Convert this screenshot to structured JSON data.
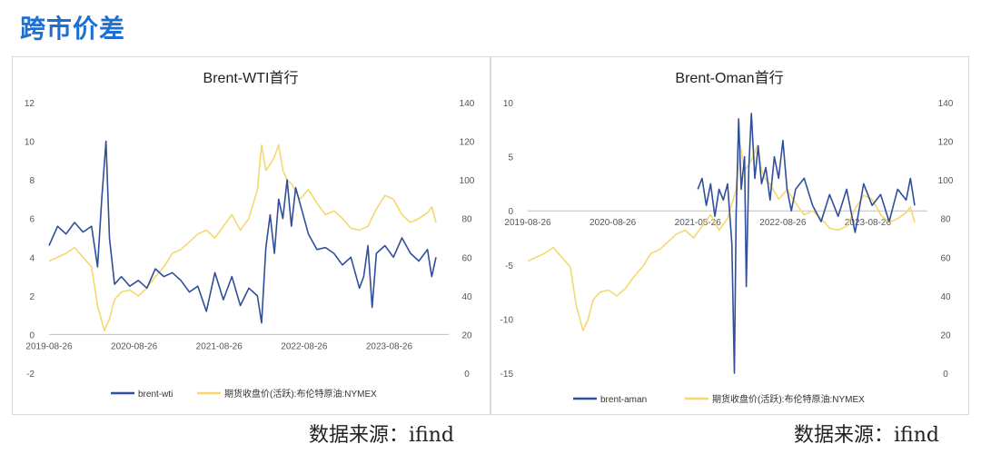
{
  "page": {
    "title": "跨市价差",
    "source_left": "数据来源：ifind",
    "source_right": "数据来源：ifind"
  },
  "colors": {
    "spread": "#2f4f9b",
    "price": "#f5d76e",
    "title": "#1f6fd1"
  },
  "chart_data": [
    {
      "type": "line",
      "title": "Brent-WTI首行",
      "x_tick_labels": [
        "2019-08-26",
        "2020-08-26",
        "2021-08-26",
        "2022-08-26",
        "2023-08-26"
      ],
      "left_axis": {
        "min": -2,
        "max": 12,
        "ticks": [
          -2,
          0,
          2,
          4,
          6,
          8,
          10,
          12
        ]
      },
      "right_axis": {
        "min": 0,
        "max": 140,
        "ticks": [
          0,
          20,
          40,
          60,
          80,
          100,
          120,
          140
        ]
      },
      "legend_position": "bottom",
      "series": [
        {
          "name": "brent-wti",
          "axis": "left",
          "color": "#2f4f9b",
          "points": [
            [
              2019.65,
              4.6
            ],
            [
              2019.75,
              5.6
            ],
            [
              2019.85,
              5.2
            ],
            [
              2019.95,
              5.8
            ],
            [
              2020.05,
              5.3
            ],
            [
              2020.15,
              5.6
            ],
            [
              2020.22,
              3.5
            ],
            [
              2020.27,
              7.0
            ],
            [
              2020.32,
              10.0
            ],
            [
              2020.36,
              5.0
            ],
            [
              2020.42,
              2.6
            ],
            [
              2020.5,
              3.0
            ],
            [
              2020.6,
              2.5
            ],
            [
              2020.7,
              2.8
            ],
            [
              2020.8,
              2.4
            ],
            [
              2020.9,
              3.4
            ],
            [
              2021.0,
              3.0
            ],
            [
              2021.1,
              3.2
            ],
            [
              2021.2,
              2.8
            ],
            [
              2021.3,
              2.2
            ],
            [
              2021.4,
              2.5
            ],
            [
              2021.5,
              1.2
            ],
            [
              2021.6,
              3.2
            ],
            [
              2021.7,
              1.8
            ],
            [
              2021.8,
              3.0
            ],
            [
              2021.9,
              1.5
            ],
            [
              2022.0,
              2.4
            ],
            [
              2022.1,
              2.0
            ],
            [
              2022.15,
              0.6
            ],
            [
              2022.2,
              4.5
            ],
            [
              2022.25,
              6.2
            ],
            [
              2022.3,
              4.2
            ],
            [
              2022.35,
              7.0
            ],
            [
              2022.4,
              6.0
            ],
            [
              2022.45,
              8.0
            ],
            [
              2022.5,
              5.6
            ],
            [
              2022.55,
              7.6
            ],
            [
              2022.6,
              6.8
            ],
            [
              2022.7,
              5.2
            ],
            [
              2022.8,
              4.4
            ],
            [
              2022.9,
              4.5
            ],
            [
              2023.0,
              4.2
            ],
            [
              2023.1,
              3.6
            ],
            [
              2023.2,
              4.0
            ],
            [
              2023.3,
              2.4
            ],
            [
              2023.35,
              3.0
            ],
            [
              2023.4,
              4.6
            ],
            [
              2023.45,
              1.4
            ],
            [
              2023.5,
              4.2
            ],
            [
              2023.6,
              4.6
            ],
            [
              2023.7,
              4.0
            ],
            [
              2023.8,
              5.0
            ],
            [
              2023.9,
              4.2
            ],
            [
              2024.0,
              3.8
            ],
            [
              2024.1,
              4.4
            ],
            [
              2024.15,
              3.0
            ],
            [
              2024.2,
              4.0
            ]
          ]
        },
        {
          "name": "期货收盘价(活跃):布伦特原油:NYMEX",
          "axis": "right",
          "color": "#f5d76e",
          "points": [
            [
              2019.65,
              58
            ],
            [
              2019.75,
              60
            ],
            [
              2019.85,
              62
            ],
            [
              2019.95,
              65
            ],
            [
              2020.05,
              60
            ],
            [
              2020.15,
              55
            ],
            [
              2020.22,
              35
            ],
            [
              2020.3,
              22
            ],
            [
              2020.36,
              28
            ],
            [
              2020.42,
              38
            ],
            [
              2020.5,
              42
            ],
            [
              2020.6,
              43
            ],
            [
              2020.7,
              40
            ],
            [
              2020.8,
              44
            ],
            [
              2020.9,
              50
            ],
            [
              2021.0,
              55
            ],
            [
              2021.1,
              62
            ],
            [
              2021.2,
              64
            ],
            [
              2021.3,
              68
            ],
            [
              2021.4,
              72
            ],
            [
              2021.5,
              74
            ],
            [
              2021.6,
              70
            ],
            [
              2021.7,
              76
            ],
            [
              2021.8,
              82
            ],
            [
              2021.9,
              74
            ],
            [
              2022.0,
              80
            ],
            [
              2022.1,
              95
            ],
            [
              2022.15,
              118
            ],
            [
              2022.2,
              105
            ],
            [
              2022.25,
              108
            ],
            [
              2022.3,
              112
            ],
            [
              2022.35,
              118
            ],
            [
              2022.4,
              105
            ],
            [
              2022.45,
              100
            ],
            [
              2022.5,
              98
            ],
            [
              2022.6,
              90
            ],
            [
              2022.7,
              95
            ],
            [
              2022.8,
              88
            ],
            [
              2022.9,
              82
            ],
            [
              2023.0,
              84
            ],
            [
              2023.1,
              80
            ],
            [
              2023.2,
              75
            ],
            [
              2023.3,
              74
            ],
            [
              2023.4,
              76
            ],
            [
              2023.5,
              85
            ],
            [
              2023.6,
              92
            ],
            [
              2023.7,
              90
            ],
            [
              2023.8,
              82
            ],
            [
              2023.9,
              78
            ],
            [
              2024.0,
              80
            ],
            [
              2024.1,
              83
            ],
            [
              2024.15,
              86
            ],
            [
              2024.2,
              78
            ]
          ]
        }
      ]
    },
    {
      "type": "line",
      "title": "Brent-Oman首行",
      "x_tick_labels": [
        "2019-08-26",
        "2020-08-26",
        "2021-08-26",
        "2022-08-26",
        "2023-08-26"
      ],
      "left_axis": {
        "min": -15,
        "max": 10,
        "ticks": [
          -15,
          -10,
          -5,
          0,
          5,
          10
        ]
      },
      "right_axis": {
        "min": 0,
        "max": 140,
        "ticks": [
          0,
          20,
          40,
          60,
          80,
          100,
          120,
          140
        ]
      },
      "legend_position": "bottom",
      "series": [
        {
          "name": "brent-aman",
          "axis": "left",
          "color": "#2f4f9b",
          "points": [
            [
              2021.65,
              2.0
            ],
            [
              2021.7,
              3.0
            ],
            [
              2021.75,
              0.5
            ],
            [
              2021.8,
              2.5
            ],
            [
              2021.85,
              -0.5
            ],
            [
              2021.9,
              2.0
            ],
            [
              2021.95,
              1.0
            ],
            [
              2022.0,
              2.5
            ],
            [
              2022.05,
              -3.0
            ],
            [
              2022.08,
              -15.0
            ],
            [
              2022.1,
              -0.5
            ],
            [
              2022.13,
              8.5
            ],
            [
              2022.16,
              2.0
            ],
            [
              2022.2,
              5.0
            ],
            [
              2022.22,
              -7.0
            ],
            [
              2022.25,
              4.0
            ],
            [
              2022.28,
              9.0
            ],
            [
              2022.32,
              3.0
            ],
            [
              2022.36,
              6.0
            ],
            [
              2022.4,
              2.5
            ],
            [
              2022.45,
              4.0
            ],
            [
              2022.5,
              1.0
            ],
            [
              2022.55,
              5.0
            ],
            [
              2022.6,
              3.0
            ],
            [
              2022.65,
              6.5
            ],
            [
              2022.7,
              2.0
            ],
            [
              2022.75,
              0.0
            ],
            [
              2022.8,
              2.0
            ],
            [
              2022.9,
              3.0
            ],
            [
              2023.0,
              0.5
            ],
            [
              2023.1,
              -1.0
            ],
            [
              2023.2,
              1.5
            ],
            [
              2023.3,
              -0.5
            ],
            [
              2023.4,
              2.0
            ],
            [
              2023.5,
              -2.0
            ],
            [
              2023.6,
              2.5
            ],
            [
              2023.7,
              0.5
            ],
            [
              2023.8,
              1.5
            ],
            [
              2023.9,
              -1.0
            ],
            [
              2024.0,
              2.0
            ],
            [
              2024.1,
              1.0
            ],
            [
              2024.15,
              3.0
            ],
            [
              2024.2,
              0.5
            ]
          ]
        },
        {
          "name": "期货收盘价(活跃):布伦特原油:NYMEX",
          "axis": "right",
          "color": "#f5d76e",
          "points": [
            [
              2019.65,
              58
            ],
            [
              2019.75,
              60
            ],
            [
              2019.85,
              62
            ],
            [
              2019.95,
              65
            ],
            [
              2020.05,
              60
            ],
            [
              2020.15,
              55
            ],
            [
              2020.22,
              35
            ],
            [
              2020.3,
              22
            ],
            [
              2020.36,
              28
            ],
            [
              2020.42,
              38
            ],
            [
              2020.5,
              42
            ],
            [
              2020.6,
              43
            ],
            [
              2020.7,
              40
            ],
            [
              2020.8,
              44
            ],
            [
              2020.9,
              50
            ],
            [
              2021.0,
              55
            ],
            [
              2021.1,
              62
            ],
            [
              2021.2,
              64
            ],
            [
              2021.3,
              68
            ],
            [
              2021.4,
              72
            ],
            [
              2021.5,
              74
            ],
            [
              2021.6,
              70
            ],
            [
              2021.7,
              76
            ],
            [
              2021.8,
              82
            ],
            [
              2021.9,
              74
            ],
            [
              2022.0,
              80
            ],
            [
              2022.1,
              95
            ],
            [
              2022.15,
              118
            ],
            [
              2022.2,
              105
            ],
            [
              2022.25,
              108
            ],
            [
              2022.3,
              112
            ],
            [
              2022.35,
              118
            ],
            [
              2022.4,
              105
            ],
            [
              2022.45,
              100
            ],
            [
              2022.5,
              98
            ],
            [
              2022.6,
              90
            ],
            [
              2022.7,
              95
            ],
            [
              2022.8,
              88
            ],
            [
              2022.9,
              82
            ],
            [
              2023.0,
              84
            ],
            [
              2023.1,
              80
            ],
            [
              2023.2,
              75
            ],
            [
              2023.3,
              74
            ],
            [
              2023.4,
              76
            ],
            [
              2023.5,
              85
            ],
            [
              2023.6,
              92
            ],
            [
              2023.7,
              90
            ],
            [
              2023.8,
              82
            ],
            [
              2023.9,
              78
            ],
            [
              2024.0,
              80
            ],
            [
              2024.1,
              83
            ],
            [
              2024.15,
              86
            ],
            [
              2024.2,
              78
            ]
          ]
        }
      ]
    }
  ]
}
